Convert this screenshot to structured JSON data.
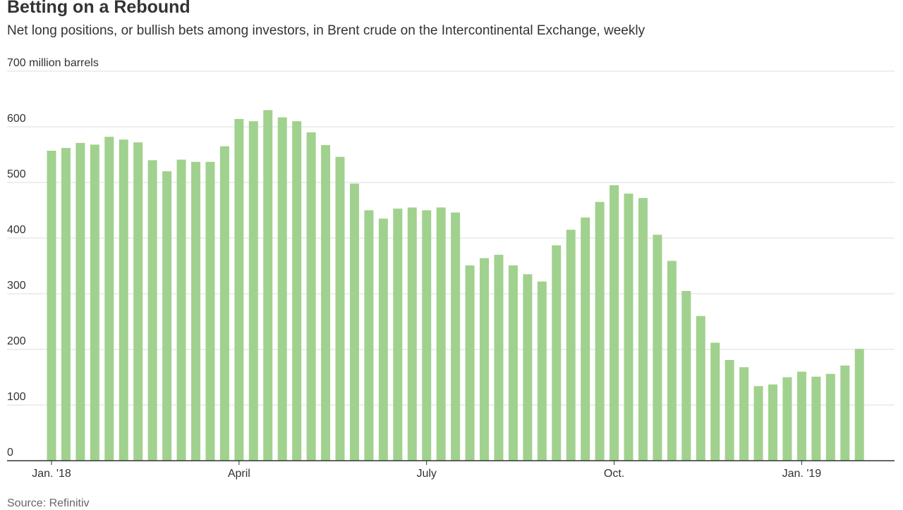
{
  "title": "Betting on a Rebound",
  "subtitle": "Net long positions, or bullish bets among investors, in Brent crude on the Intercontinental Exchange, weekly",
  "source": "Source: Refinitiv",
  "colors": {
    "bar": "#a1d18e",
    "grid": "#dddddd",
    "axis": "#333333"
  },
  "chart_data": {
    "type": "bar",
    "title": "Betting on a Rebound",
    "subtitle": "Net long positions, or bullish bets among investors, in Brent crude on the Intercontinental Exchange, weekly",
    "xlabel": "",
    "ylabel": "million barrels",
    "ylim": [
      0,
      700
    ],
    "y_ticks": [
      {
        "value": 700,
        "label": "700 million barrels"
      },
      {
        "value": 600,
        "label": "600"
      },
      {
        "value": 500,
        "label": "500"
      },
      {
        "value": 400,
        "label": "400"
      },
      {
        "value": 300,
        "label": "300"
      },
      {
        "value": 200,
        "label": "200"
      },
      {
        "value": 100,
        "label": "100"
      },
      {
        "value": 0,
        "label": "0"
      }
    ],
    "x_ticks": [
      {
        "index": 0,
        "label": "Jan. '18"
      },
      {
        "index": 13,
        "label": "April"
      },
      {
        "index": 26,
        "label": "July"
      },
      {
        "index": 39,
        "label": "Oct."
      },
      {
        "index": 52,
        "label": "Jan. '19"
      }
    ],
    "grid": true,
    "series": [
      {
        "name": "Net long positions",
        "values": [
          557,
          562,
          571,
          568,
          582,
          577,
          572,
          540,
          520,
          541,
          537,
          537,
          565,
          614,
          610,
          630,
          617,
          610,
          590,
          567,
          546,
          498,
          450,
          435,
          453,
          455,
          450,
          455,
          446,
          351,
          364,
          370,
          351,
          335,
          322,
          387,
          415,
          437,
          465,
          495,
          480,
          472,
          406,
          359,
          305,
          260,
          212,
          181,
          168,
          134,
          137,
          150,
          160,
          151,
          156,
          171,
          201
        ]
      }
    ]
  }
}
